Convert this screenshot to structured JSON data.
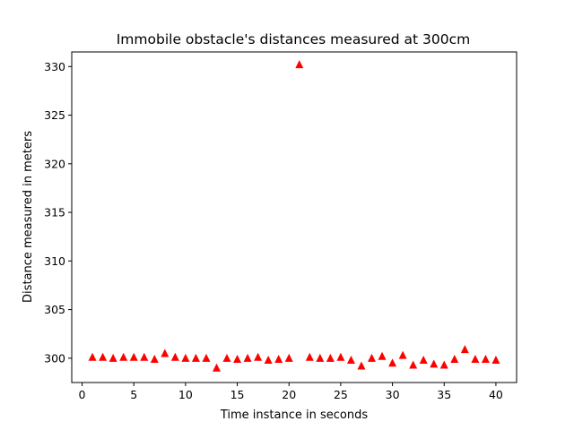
{
  "chart_data": {
    "type": "scatter",
    "title": "Immobile obstacle's distances measured at 300cm",
    "xlabel": "Time instance in seconds",
    "ylabel": "Distance measured in meters",
    "xlim": [
      -1,
      42
    ],
    "ylim": [
      297.5,
      331.5
    ],
    "xticks": [
      0,
      5,
      10,
      15,
      20,
      25,
      30,
      35,
      40
    ],
    "yticks": [
      300,
      305,
      310,
      315,
      320,
      325,
      330
    ],
    "marker": "triangle-up",
    "color": "#ff0000",
    "grid": false,
    "series": [
      {
        "x": [
          1,
          2,
          3,
          4,
          5,
          6,
          7,
          8,
          9,
          10,
          11,
          12,
          13,
          14,
          15,
          16,
          17,
          18,
          19,
          20,
          21,
          22,
          23,
          24,
          25,
          26,
          27,
          28,
          29,
          30,
          31,
          32,
          33,
          34,
          35,
          36,
          37,
          38,
          39,
          40
        ],
        "y": [
          300.1,
          300.1,
          300.0,
          300.1,
          300.1,
          300.1,
          299.9,
          300.5,
          300.1,
          300.0,
          300.0,
          300.0,
          299.0,
          300.0,
          299.9,
          300.0,
          300.1,
          299.8,
          299.9,
          300.0,
          330.2,
          300.1,
          300.0,
          300.0,
          300.1,
          299.8,
          299.2,
          300.0,
          300.2,
          299.5,
          300.3,
          299.3,
          299.8,
          299.4,
          299.3,
          299.9,
          300.9,
          299.9,
          299.9,
          299.8
        ]
      }
    ]
  }
}
